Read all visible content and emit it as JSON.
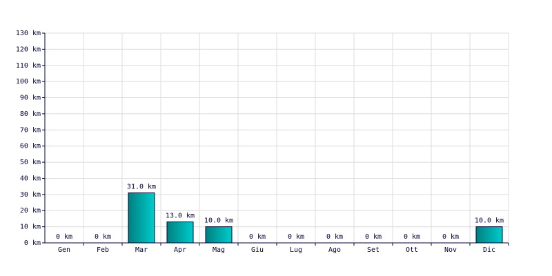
{
  "chart_data": {
    "type": "bar",
    "categories": [
      "Gen",
      "Feb",
      "Mar",
      "Apr",
      "Mag",
      "Giu",
      "Lug",
      "Ago",
      "Set",
      "Ott",
      "Nov",
      "Dic"
    ],
    "values": [
      0,
      0,
      31,
      13,
      10,
      0,
      0,
      0,
      0,
      0,
      0,
      10
    ],
    "value_labels": [
      "0 km",
      "0 km",
      "31.0 km",
      "13.0 km",
      "10.0 km",
      "0 km",
      "0 km",
      "0 km",
      "0 km",
      "0 km",
      "0 km",
      "10.0 km"
    ],
    "color": "#00cccc",
    "ylim": [
      0,
      130
    ],
    "yticks": [
      {
        "value": 0,
        "label": "0 km"
      },
      {
        "value": 10,
        "label": "10 km"
      },
      {
        "value": 20,
        "label": "20 km"
      },
      {
        "value": 30,
        "label": "30 km"
      },
      {
        "value": 40,
        "label": "40 km"
      },
      {
        "value": 50,
        "label": "50 km"
      },
      {
        "value": 60,
        "label": "60 km"
      },
      {
        "value": 70,
        "label": "70 km"
      },
      {
        "value": 80,
        "label": "80 km"
      },
      {
        "value": 90,
        "label": "90 km"
      },
      {
        "value": 100,
        "label": "100 km"
      },
      {
        "value": 110,
        "label": "110 km"
      },
      {
        "value": 120,
        "label": "120 km"
      },
      {
        "value": 130,
        "label": "130 km"
      }
    ],
    "grid": true
  }
}
